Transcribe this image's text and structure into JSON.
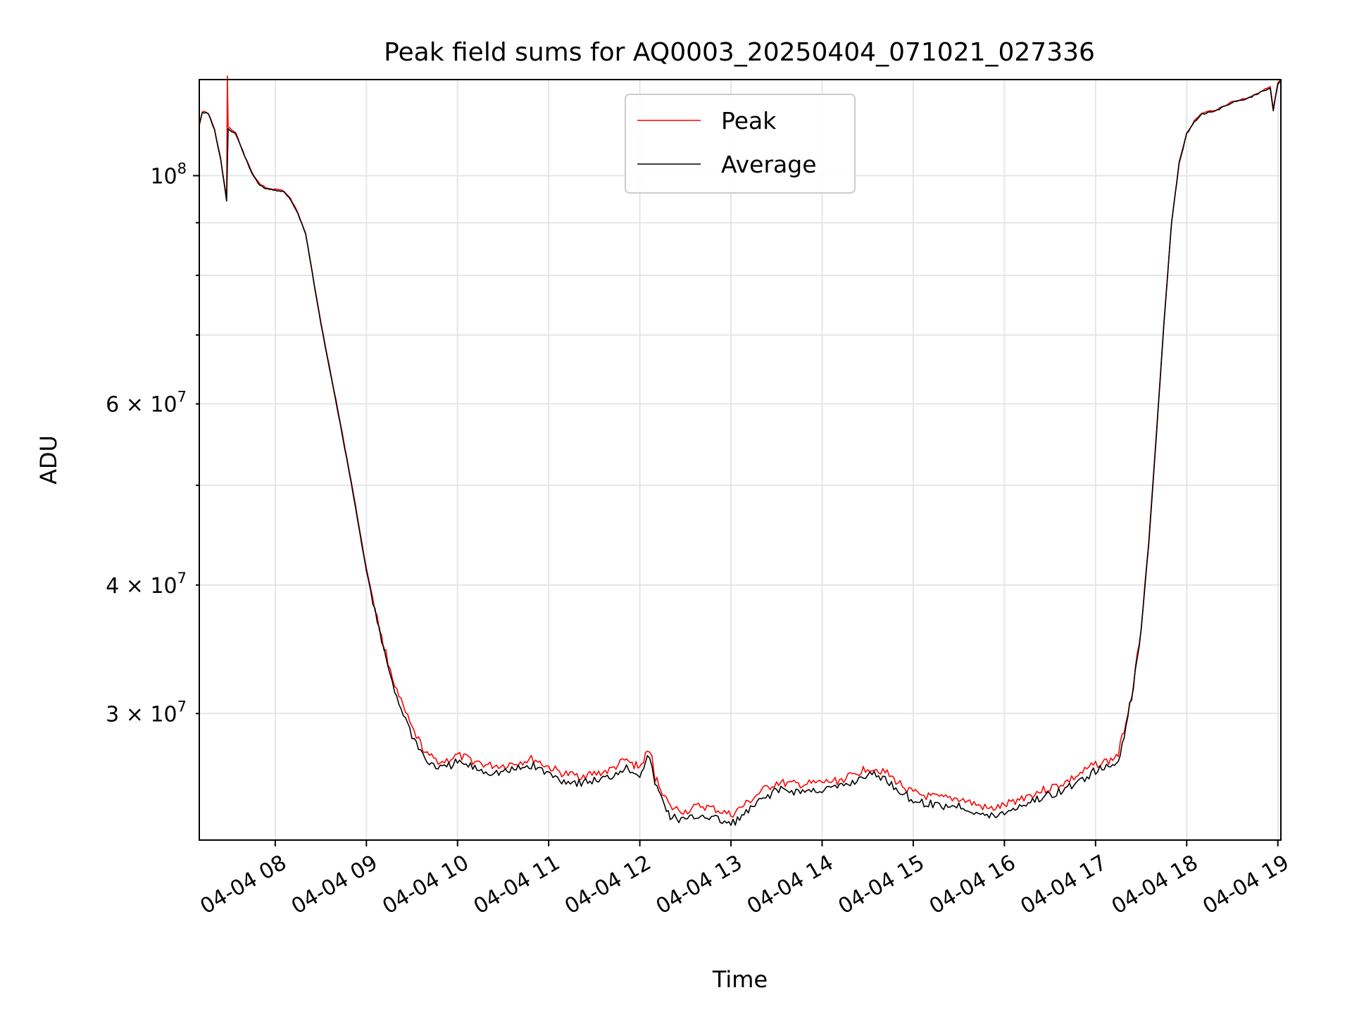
{
  "chart_data": {
    "type": "line",
    "title": "Peak field sums for AQ0003_20250404_071021_027336",
    "xlabel": "Time",
    "ylabel": "ADU",
    "x_unit": "datetime",
    "xlim": [
      "2025-04-04 07:10",
      "2025-04-04 19:02"
    ],
    "ylim": [
      22600000,
      124000000
    ],
    "yscale": "log",
    "grid": true,
    "legend_position": "top-center",
    "x_ticks": [
      {
        "value": "2025-04-04 08:00",
        "label": "04-04 08"
      },
      {
        "value": "2025-04-04 09:00",
        "label": "04-04 09"
      },
      {
        "value": "2025-04-04 10:00",
        "label": "04-04 10"
      },
      {
        "value": "2025-04-04 11:00",
        "label": "04-04 11"
      },
      {
        "value": "2025-04-04 12:00",
        "label": "04-04 12"
      },
      {
        "value": "2025-04-04 13:00",
        "label": "04-04 13"
      },
      {
        "value": "2025-04-04 14:00",
        "label": "04-04 14"
      },
      {
        "value": "2025-04-04 15:00",
        "label": "04-04 15"
      },
      {
        "value": "2025-04-04 16:00",
        "label": "04-04 16"
      },
      {
        "value": "2025-04-04 17:00",
        "label": "04-04 17"
      },
      {
        "value": "2025-04-04 18:00",
        "label": "04-04 18"
      },
      {
        "value": "2025-04-04 19:00",
        "label": "04-04 19"
      }
    ],
    "y_ticks_major": [
      {
        "value": 100000000,
        "base": "10",
        "exp": "8",
        "coef": ""
      }
    ],
    "y_ticks_minor": [
      {
        "value": 30000000,
        "base": "10",
        "exp": "7",
        "coef": "3 × "
      },
      {
        "value": 40000000,
        "base": "10",
        "exp": "7",
        "coef": "4 × "
      },
      {
        "value": 50000000,
        "base": "",
        "exp": "",
        "coef": ""
      },
      {
        "value": 60000000,
        "base": "10",
        "exp": "7",
        "coef": "6 × "
      },
      {
        "value": 70000000,
        "base": "",
        "exp": "",
        "coef": ""
      },
      {
        "value": 80000000,
        "base": "",
        "exp": "",
        "coef": ""
      },
      {
        "value": 90000000,
        "base": "",
        "exp": "",
        "coef": ""
      }
    ],
    "series": [
      {
        "name": "Peak",
        "color": "#ff0000",
        "x": [
          "2025-04-04 07:10",
          "2025-04-04 07:12",
          "2025-04-04 07:16",
          "2025-04-04 07:20",
          "2025-04-04 07:24",
          "2025-04-04 07:28",
          "2025-04-04 07:28:30",
          "2025-04-04 07:29",
          "2025-04-04 07:34",
          "2025-04-04 07:40",
          "2025-04-04 07:45",
          "2025-04-04 07:50",
          "2025-04-04 07:55",
          "2025-04-04 08:00",
          "2025-04-04 08:05",
          "2025-04-04 08:10",
          "2025-04-04 08:15",
          "2025-04-04 08:20",
          "2025-04-04 08:30",
          "2025-04-04 08:40",
          "2025-04-04 08:50",
          "2025-04-04 09:00",
          "2025-04-04 09:10",
          "2025-04-04 09:20",
          "2025-04-04 09:30",
          "2025-04-04 09:40",
          "2025-04-04 09:50",
          "2025-04-04 10:00",
          "2025-04-04 10:10",
          "2025-04-04 10:20",
          "2025-04-04 10:30",
          "2025-04-04 10:40",
          "2025-04-04 10:50",
          "2025-04-04 11:00",
          "2025-04-04 11:10",
          "2025-04-04 11:20",
          "2025-04-04 11:30",
          "2025-04-04 11:40",
          "2025-04-04 11:50",
          "2025-04-04 11:55",
          "2025-04-04 12:00",
          "2025-04-04 12:05",
          "2025-04-04 12:08",
          "2025-04-04 12:10",
          "2025-04-04 12:15",
          "2025-04-04 12:20",
          "2025-04-04 12:30",
          "2025-04-04 12:40",
          "2025-04-04 12:50",
          "2025-04-04 13:00",
          "2025-04-04 13:10",
          "2025-04-04 13:20",
          "2025-04-04 13:30",
          "2025-04-04 13:40",
          "2025-04-04 13:50",
          "2025-04-04 14:00",
          "2025-04-04 14:10",
          "2025-04-04 14:20",
          "2025-04-04 14:30",
          "2025-04-04 14:40",
          "2025-04-04 14:50",
          "2025-04-04 15:00",
          "2025-04-04 15:10",
          "2025-04-04 15:20",
          "2025-04-04 15:30",
          "2025-04-04 15:40",
          "2025-04-04 15:50",
          "2025-04-04 16:00",
          "2025-04-04 16:10",
          "2025-04-04 16:20",
          "2025-04-04 16:30",
          "2025-04-04 16:40",
          "2025-04-04 16:50",
          "2025-04-04 17:00",
          "2025-04-04 17:10",
          "2025-04-04 17:15",
          "2025-04-04 17:20",
          "2025-04-04 17:25",
          "2025-04-04 17:30",
          "2025-04-04 17:35",
          "2025-04-04 17:40",
          "2025-04-04 17:45",
          "2025-04-04 17:50",
          "2025-04-04 17:55",
          "2025-04-04 18:00",
          "2025-04-04 18:05",
          "2025-04-04 18:10",
          "2025-04-04 18:20",
          "2025-04-04 18:30",
          "2025-04-04 18:40",
          "2025-04-04 18:50",
          "2025-04-04 18:55",
          "2025-04-04 18:57",
          "2025-04-04 19:00",
          "2025-04-04 19:02"
        ],
        "values": [
          112000000,
          115500000,
          115000000,
          111000000,
          104000000,
          95000000,
          125000000,
          111500000,
          110000000,
          104500000,
          100500000,
          98000000,
          97200000,
          97000000,
          96800000,
          95000000,
          92000000,
          88000000,
          72000000,
          60500000,
          50500000,
          41500000,
          35500000,
          31500000,
          29000000,
          27300000,
          26900000,
          27300000,
          27000000,
          26700000,
          26700000,
          26900000,
          27100000,
          26600000,
          26200000,
          26100000,
          26200000,
          26400000,
          27000000,
          26800000,
          26600000,
          27500000,
          27200000,
          26000000,
          25200000,
          24300000,
          24100000,
          24400000,
          24200000,
          23900000,
          24500000,
          25200000,
          25700000,
          25600000,
          25600000,
          25700000,
          25800000,
          26100000,
          26600000,
          26400000,
          25700000,
          25100000,
          24900000,
          24800000,
          24800000,
          24500000,
          24200000,
          24400000,
          24800000,
          25100000,
          25400000,
          25700000,
          26200000,
          26800000,
          27000000,
          27400000,
          29500000,
          32000000,
          36500000,
          44000000,
          56000000,
          72000000,
          90000000,
          103000000,
          110000000,
          113000000,
          115000000,
          116000000,
          118000000,
          119000000,
          121000000,
          122000000,
          116000000,
          123000000,
          124000000
        ]
      },
      {
        "name": "Average",
        "color": "#000000",
        "x": [
          "2025-04-04 07:10",
          "2025-04-04 07:12",
          "2025-04-04 07:16",
          "2025-04-04 07:20",
          "2025-04-04 07:24",
          "2025-04-04 07:28",
          "2025-04-04 07:29",
          "2025-04-04 07:34",
          "2025-04-04 07:40",
          "2025-04-04 07:45",
          "2025-04-04 07:50",
          "2025-04-04 07:55",
          "2025-04-04 08:00",
          "2025-04-04 08:05",
          "2025-04-04 08:10",
          "2025-04-04 08:15",
          "2025-04-04 08:20",
          "2025-04-04 08:30",
          "2025-04-04 08:40",
          "2025-04-04 08:50",
          "2025-04-04 09:00",
          "2025-04-04 09:10",
          "2025-04-04 09:20",
          "2025-04-04 09:30",
          "2025-04-04 09:40",
          "2025-04-04 09:50",
          "2025-04-04 10:00",
          "2025-04-04 10:10",
          "2025-04-04 10:20",
          "2025-04-04 10:30",
          "2025-04-04 10:40",
          "2025-04-04 10:50",
          "2025-04-04 11:00",
          "2025-04-04 11:10",
          "2025-04-04 11:20",
          "2025-04-04 11:30",
          "2025-04-04 11:40",
          "2025-04-04 11:50",
          "2025-04-04 11:55",
          "2025-04-04 12:00",
          "2025-04-04 12:05",
          "2025-04-04 12:08",
          "2025-04-04 12:10",
          "2025-04-04 12:15",
          "2025-04-04 12:20",
          "2025-04-04 12:30",
          "2025-04-04 12:40",
          "2025-04-04 12:50",
          "2025-04-04 13:00",
          "2025-04-04 13:10",
          "2025-04-04 13:20",
          "2025-04-04 13:30",
          "2025-04-04 13:40",
          "2025-04-04 13:50",
          "2025-04-04 14:00",
          "2025-04-04 14:10",
          "2025-04-04 14:20",
          "2025-04-04 14:30",
          "2025-04-04 14:40",
          "2025-04-04 14:50",
          "2025-04-04 15:00",
          "2025-04-04 15:10",
          "2025-04-04 15:20",
          "2025-04-04 15:30",
          "2025-04-04 15:40",
          "2025-04-04 15:50",
          "2025-04-04 16:00",
          "2025-04-04 16:10",
          "2025-04-04 16:20",
          "2025-04-04 16:30",
          "2025-04-04 16:40",
          "2025-04-04 16:50",
          "2025-04-04 17:00",
          "2025-04-04 17:10",
          "2025-04-04 17:15",
          "2025-04-04 17:20",
          "2025-04-04 17:25",
          "2025-04-04 17:30",
          "2025-04-04 17:35",
          "2025-04-04 17:40",
          "2025-04-04 17:45",
          "2025-04-04 17:50",
          "2025-04-04 17:55",
          "2025-04-04 18:00",
          "2025-04-04 18:05",
          "2025-04-04 18:10",
          "2025-04-04 18:20",
          "2025-04-04 18:30",
          "2025-04-04 18:40",
          "2025-04-04 18:50",
          "2025-04-04 18:55",
          "2025-04-04 18:57",
          "2025-04-04 19:00",
          "2025-04-04 19:02"
        ],
        "values": [
          112000000,
          115300000,
          114800000,
          110800000,
          103800000,
          94500000,
          111000000,
          109800000,
          104300000,
          100300000,
          97800000,
          97000000,
          96800000,
          96600000,
          94800000,
          91800000,
          87800000,
          71800000,
          60300000,
          50300000,
          41300000,
          35200000,
          31100000,
          28600000,
          26900000,
          26500000,
          26900000,
          26600000,
          26300000,
          26300000,
          26500000,
          26700000,
          26200000,
          25800000,
          25700000,
          25800000,
          26000000,
          26600000,
          26400000,
          26200000,
          27100000,
          26800000,
          25600000,
          24700000,
          23800000,
          23600000,
          23900000,
          23700000,
          23400000,
          24000000,
          24700000,
          25300000,
          25200000,
          25200000,
          25300000,
          25400000,
          25700000,
          26200000,
          26000000,
          25300000,
          24700000,
          24500000,
          24400000,
          24400000,
          24100000,
          23800000,
          24000000,
          24400000,
          24700000,
          25000000,
          25300000,
          25800000,
          26400000,
          26600000,
          27000000,
          29200000,
          31800000,
          36300000,
          43800000,
          55800000,
          71800000,
          89800000,
          102800000,
          109800000,
          112800000,
          114800000,
          115800000,
          117800000,
          118800000,
          120800000,
          121800000,
          115800000,
          122800000,
          123800000
        ]
      }
    ]
  }
}
